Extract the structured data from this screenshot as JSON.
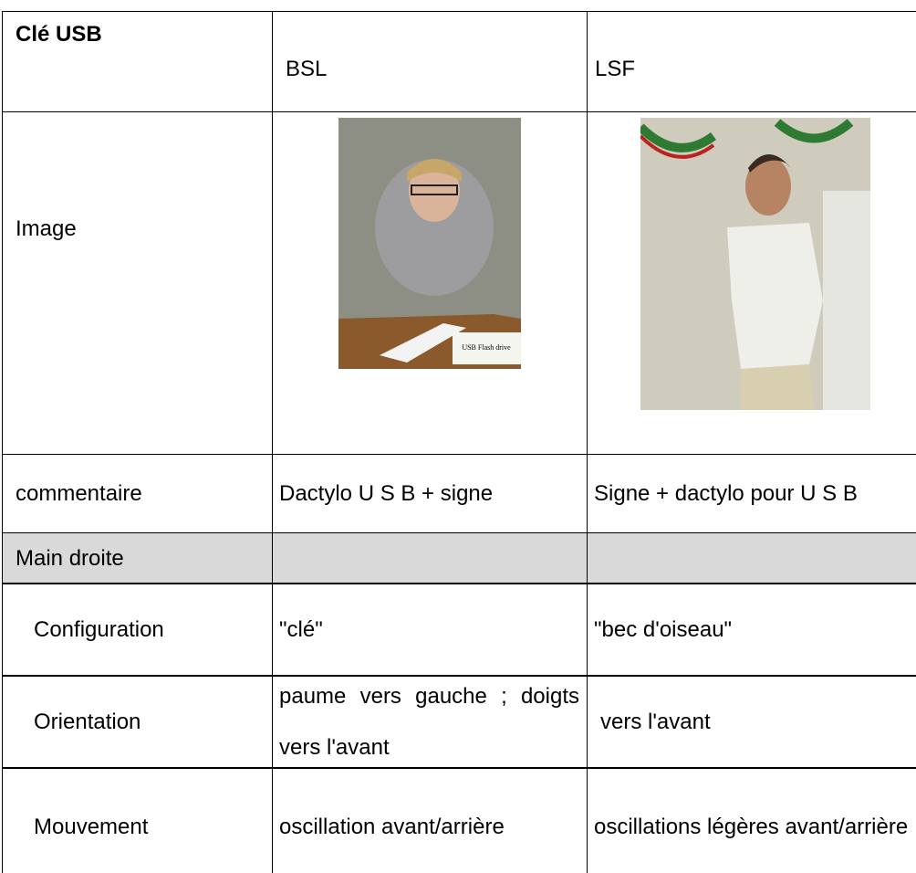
{
  "table": {
    "header": [
      "Clé USB",
      "BSL",
      "LSF"
    ],
    "image_row_label": "Image",
    "image_caption": "USB Flash drive",
    "rows": [
      [
        "commentaire",
        "Dactylo U S B + signe",
        "Signe + dactylo pour U S B"
      ],
      [
        "Main droite",
        "",
        ""
      ],
      [
        "Configuration",
        "\"clé\"",
        "\"bec d'oiseau\""
      ],
      [
        "Orientation",
        "paume vers gauche ; doigts vers l'avant",
        "vers l'avant"
      ],
      [
        "Mouvement",
        "oscillation avant/arrière",
        "oscillations légères avant/arrière"
      ]
    ]
  }
}
